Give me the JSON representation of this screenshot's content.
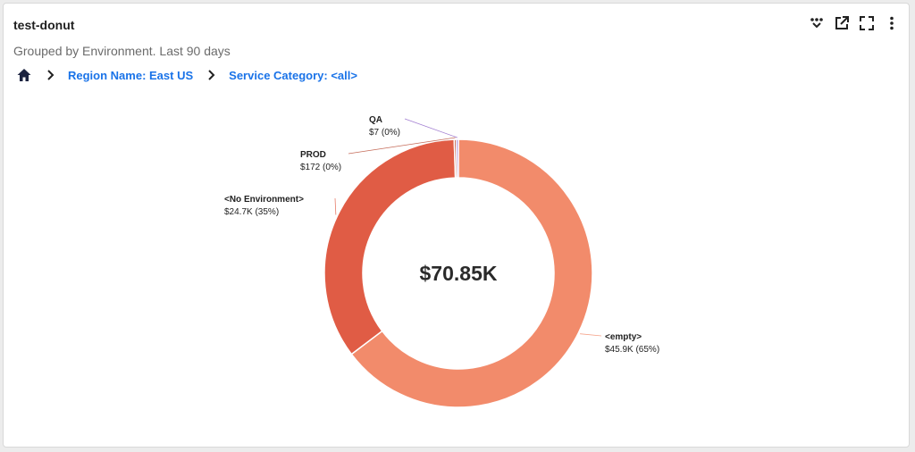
{
  "widget": {
    "title": "test-donut",
    "subtitle": "Grouped by Environment. Last 90 days"
  },
  "breadcrumb": {
    "home_icon": "home-icon",
    "items": [
      "Region Name: East US",
      "Service Category: <all>"
    ]
  },
  "toolbar": {
    "icons": [
      "drilldown-icon",
      "open-external-icon",
      "fullscreen-icon",
      "more-vertical-icon"
    ]
  },
  "colors": {
    "empty": "#f28b6b",
    "no_environment": "#e05c45",
    "prod": "#b7462f",
    "qa": "#8a5cc5",
    "link": "#1a73e8"
  },
  "chart_data": {
    "type": "pie",
    "center_total": "$70.85K",
    "slices": [
      {
        "label": "<empty>",
        "value": 45900,
        "value_text": "$45.9K (65%)"
      },
      {
        "label": "<No Environment>",
        "value": 24700,
        "value_text": "$24.7K (35%)"
      },
      {
        "label": "PROD",
        "value": 172,
        "value_text": "$172 (0%)"
      },
      {
        "label": "QA",
        "value": 7,
        "value_text": "$7 (0%)"
      }
    ]
  }
}
